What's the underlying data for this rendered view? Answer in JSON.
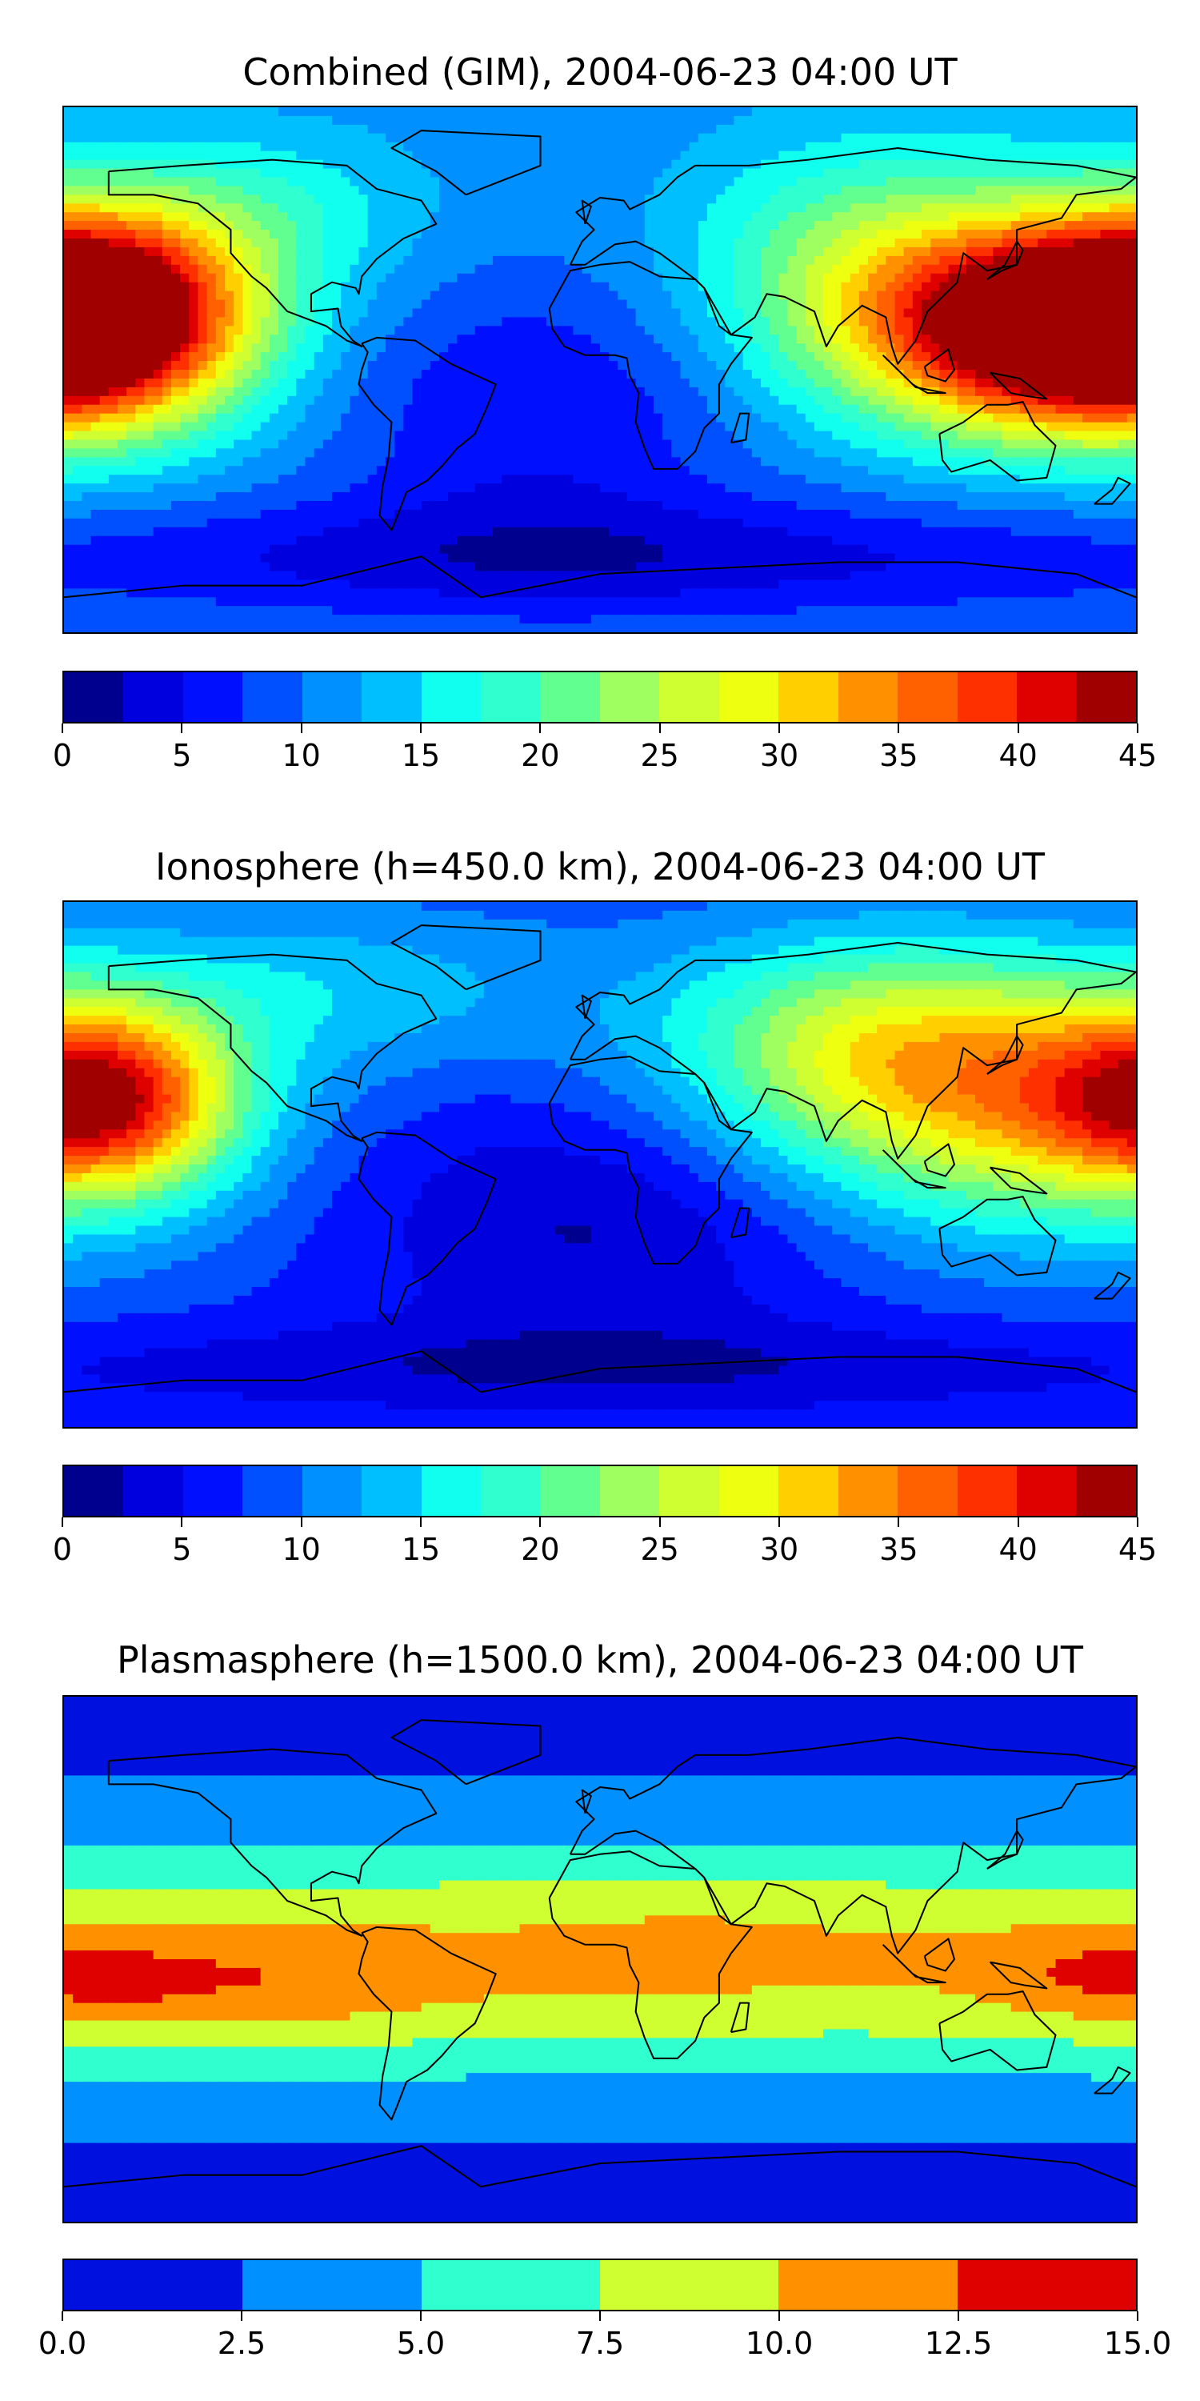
{
  "chart_data": [
    {
      "type": "heatmap",
      "title": "Combined (GIM), 2004-06-23 04:00 UT",
      "colorbar": {
        "ticks": [
          "0",
          "5",
          "10",
          "15",
          "20",
          "25",
          "30",
          "35",
          "40",
          "45"
        ],
        "range": [
          0,
          45
        ],
        "levels": 18,
        "colors": [
          "#00008f",
          "#0000df",
          "#0010ff",
          "#0050ff",
          "#0090ff",
          "#00bfff",
          "#10ffef",
          "#30ffcf",
          "#60ff90",
          "#a0ff60",
          "#cfff30",
          "#efff10",
          "#ffcf00",
          "#ff9000",
          "#ff6000",
          "#ff3000",
          "#df0000",
          "#a00000"
        ]
      },
      "field": {
        "base": 11,
        "blobs": [
          {
            "lon": -168,
            "lat": 20,
            "amp": 32,
            "sx": 38,
            "sy": 26
          },
          {
            "lon": 150,
            "lat": 12,
            "amp": 30,
            "sx": 45,
            "sy": 24
          },
          {
            "lon": 95,
            "lat": 35,
            "amp": 12,
            "sx": 45,
            "sy": 30
          },
          {
            "lon": -110,
            "lat": 55,
            "amp": 5,
            "sx": 40,
            "sy": 20
          },
          {
            "lon": -20,
            "lat": -15,
            "amp": -6,
            "sx": 50,
            "sy": 35
          },
          {
            "lon": 0,
            "lat": -65,
            "amp": -7,
            "sx": 180,
            "sy": 15
          }
        ]
      }
    },
    {
      "type": "heatmap",
      "title": "Ionosphere  (h=450.0 km), 2004-06-23 04:00 UT",
      "colorbar": {
        "ticks": [
          "0",
          "5",
          "10",
          "15",
          "20",
          "25",
          "30",
          "35",
          "40",
          "45"
        ],
        "range": [
          0,
          45
        ],
        "levels": 18,
        "colors": [
          "#00008f",
          "#0000df",
          "#0010ff",
          "#0050ff",
          "#0090ff",
          "#00bfff",
          "#10ffef",
          "#30ffcf",
          "#60ff90",
          "#a0ff60",
          "#cfff30",
          "#efff10",
          "#ffcf00",
          "#ff9000",
          "#ff6000",
          "#ff3000",
          "#df0000",
          "#a00000"
        ]
      },
      "field": {
        "base": 8,
        "blobs": [
          {
            "lon": -165,
            "lat": 22,
            "amp": 24,
            "sx": 30,
            "sy": 22
          },
          {
            "lon": 140,
            "lat": 20,
            "amp": 20,
            "sx": 60,
            "sy": 30
          },
          {
            "lon": 90,
            "lat": 45,
            "amp": 12,
            "sx": 50,
            "sy": 25
          },
          {
            "lon": -90,
            "lat": 60,
            "amp": 6,
            "sx": 60,
            "sy": 20
          },
          {
            "lon": 0,
            "lat": -20,
            "amp": -6,
            "sx": 60,
            "sy": 30
          },
          {
            "lon": 0,
            "lat": -70,
            "amp": -5,
            "sx": 180,
            "sy": 12
          }
        ]
      }
    },
    {
      "type": "heatmap",
      "title": "Plasmasphere (h=1500.0 km), 2004-06-23 04:00 UT",
      "colorbar": {
        "ticks": [
          "0.0",
          "2.5",
          "5.0",
          "7.5",
          "10.0",
          "12.5",
          "15.0"
        ],
        "range": [
          0,
          15
        ],
        "levels": 6,
        "colors": [
          "#0010df",
          "#0090ff",
          "#30ffcf",
          "#cfff30",
          "#ff9000",
          "#df0000"
        ]
      },
      "field": {
        "base": 1.5,
        "blobs": [
          {
            "lon": 0,
            "lat": 0,
            "amp": 8.5,
            "sx": 900,
            "sy": 30
          },
          {
            "lon": -130,
            "lat": -10,
            "amp": 3,
            "sx": 55,
            "sy": 14
          },
          {
            "lon": -160,
            "lat": -7,
            "amp": 2,
            "sx": 12,
            "sy": 5
          },
          {
            "lon": 165,
            "lat": -5,
            "amp": 2,
            "sx": 25,
            "sy": 10
          },
          {
            "lon": 30,
            "lat": 5,
            "amp": 1,
            "sx": 40,
            "sy": 15
          }
        ]
      }
    }
  ]
}
